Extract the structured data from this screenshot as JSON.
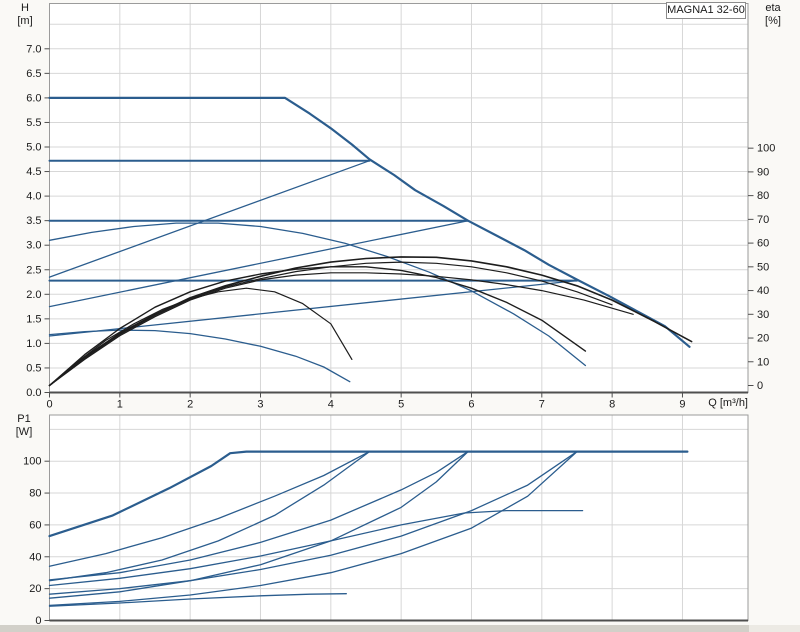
{
  "title_box": {
    "label": "MAGNA1 32-60"
  },
  "axes_labels": {
    "head": "H",
    "head_unit": "[m]",
    "eta": "eta",
    "eta_unit": "[%]",
    "power": "P1",
    "power_unit": "[W]",
    "flow": "Q [m³/h]"
  },
  "colors": {
    "blue": "#2b5d8e",
    "black": "#1d1d1d",
    "grid": "#d7d7d7",
    "frame": "#9b9b9b",
    "axis": "#4f4f4f",
    "text": "#1a1a1a",
    "plot_bg": "#ffffff"
  },
  "chart_data": [
    {
      "type": "line",
      "name": "performance-chart",
      "title": "MAGNA1 32-60",
      "x_axis": {
        "label": "Q [m³/h]",
        "min": 0,
        "max": 9.93,
        "tick_labels": [
          "0",
          "1",
          "2",
          "3",
          "4",
          "5",
          "6",
          "7",
          "8",
          "9"
        ],
        "grid": true
      },
      "y_left": {
        "label": "H [m]",
        "min": 0,
        "max": 7.9,
        "tick_step": 0.5,
        "grid_max": 7.5,
        "tick_labels": [
          "0.0",
          "0.5",
          "1.0",
          "1.5",
          "2.0",
          "2.5",
          "3.0",
          "3.5",
          "4.0",
          "4.5",
          "5.0",
          "5.5",
          "6.0",
          "6.5",
          "7.0"
        ]
      },
      "y_right": {
        "label": "eta [%]",
        "min": 0,
        "max": 100,
        "tick_step": 10,
        "tick_labels": [
          "0",
          "10",
          "20",
          "30",
          "40",
          "50",
          "60",
          "70",
          "80",
          "90",
          "100"
        ]
      },
      "series": [
        {
          "name": "max-speed-curve",
          "axis": "H",
          "color": "blue",
          "width": 2.2,
          "points": [
            [
              0,
              6.0
            ],
            [
              2.9,
              6.0
            ],
            [
              3.35,
              6.0
            ],
            [
              3.7,
              5.68
            ],
            [
              4.0,
              5.38
            ],
            [
              4.3,
              5.05
            ],
            [
              4.55,
              4.75
            ],
            [
              4.9,
              4.43
            ],
            [
              5.2,
              4.12
            ],
            [
              5.6,
              3.8
            ],
            [
              5.95,
              3.5
            ],
            [
              6.35,
              3.2
            ],
            [
              6.75,
              2.9
            ],
            [
              7.1,
              2.6
            ],
            [
              7.5,
              2.3
            ],
            [
              7.95,
              1.97
            ],
            [
              8.4,
              1.62
            ],
            [
              8.75,
              1.35
            ],
            [
              9.1,
              0.93
            ]
          ]
        },
        {
          "name": "const-pressure-4.7",
          "axis": "H",
          "color": "blue",
          "width": 2,
          "points": [
            [
              0,
              4.72
            ],
            [
              4.55,
              4.72
            ]
          ]
        },
        {
          "name": "const-pressure-3.5",
          "axis": "H",
          "color": "blue",
          "width": 2,
          "points": [
            [
              0,
              3.5
            ],
            [
              5.95,
              3.5
            ]
          ]
        },
        {
          "name": "const-pressure-2.3",
          "axis": "H",
          "color": "blue",
          "width": 2,
          "points": [
            [
              0,
              2.28
            ],
            [
              7.5,
              2.28
            ]
          ]
        },
        {
          "name": "prop-pressure-4.7",
          "axis": "H",
          "color": "blue",
          "width": 1.3,
          "points": [
            [
              0,
              2.35
            ],
            [
              4.55,
              4.72
            ]
          ]
        },
        {
          "name": "prop-pressure-3.5",
          "axis": "H",
          "color": "blue",
          "width": 1.3,
          "points": [
            [
              0,
              1.75
            ],
            [
              5.95,
              3.5
            ]
          ]
        },
        {
          "name": "prop-pressure-2.3",
          "axis": "H",
          "color": "blue",
          "width": 1.3,
          "points": [
            [
              0,
              1.15
            ],
            [
              7.5,
              2.28
            ]
          ]
        },
        {
          "name": "mid-speed-curve",
          "axis": "H",
          "color": "blue",
          "width": 1.3,
          "points": [
            [
              0,
              3.1
            ],
            [
              0.6,
              3.26
            ],
            [
              1.2,
              3.38
            ],
            [
              1.8,
              3.45
            ],
            [
              2.4,
              3.45
            ],
            [
              3.0,
              3.38
            ],
            [
              3.6,
              3.24
            ],
            [
              4.2,
              3.04
            ],
            [
              4.8,
              2.77
            ],
            [
              5.4,
              2.45
            ],
            [
              6.0,
              2.07
            ],
            [
              6.6,
              1.6
            ],
            [
              7.1,
              1.15
            ],
            [
              7.62,
              0.55
            ]
          ]
        },
        {
          "name": "min-speed-curve",
          "axis": "H",
          "color": "blue",
          "width": 1.3,
          "points": [
            [
              0,
              1.18
            ],
            [
              0.5,
              1.24
            ],
            [
              1.0,
              1.27
            ],
            [
              1.5,
              1.26
            ],
            [
              2.0,
              1.2
            ],
            [
              2.5,
              1.09
            ],
            [
              3.0,
              0.94
            ],
            [
              3.5,
              0.74
            ],
            [
              3.9,
              0.52
            ],
            [
              4.27,
              0.22
            ]
          ]
        },
        {
          "name": "efficiency-max",
          "axis": "eta",
          "color": "black",
          "width": 1.6,
          "points": [
            [
              0,
              0
            ],
            [
              0.5,
              12
            ],
            [
              1,
              22
            ],
            [
              1.5,
              30
            ],
            [
              2,
              37
            ],
            [
              2.5,
              42
            ],
            [
              3,
              46
            ],
            [
              3.5,
              49.5
            ],
            [
              4,
              52
            ],
            [
              4.5,
              53.5
            ],
            [
              5,
              54.2
            ],
            [
              5.5,
              54
            ],
            [
              6,
              52.5
            ],
            [
              6.5,
              50
            ],
            [
              7,
              46.5
            ],
            [
              7.5,
              42
            ],
            [
              8,
              36
            ],
            [
              8.6,
              27
            ],
            [
              9.13,
              18.5
            ]
          ]
        },
        {
          "name": "efficiency-2",
          "axis": "eta",
          "color": "black",
          "width": 1.4,
          "points": [
            [
              0,
              0
            ],
            [
              0.5,
              13
            ],
            [
              1,
              24
            ],
            [
              1.5,
              33
            ],
            [
              2,
              39.5
            ],
            [
              2.5,
              44
            ],
            [
              3,
              47
            ],
            [
              3.5,
              49
            ],
            [
              4,
              50
            ],
            [
              4.5,
              50
            ],
            [
              5,
              48.5
            ],
            [
              5.5,
              45.5
            ],
            [
              6,
              41
            ],
            [
              6.5,
              35
            ],
            [
              7,
              27.5
            ],
            [
              7.62,
              14.5
            ]
          ]
        },
        {
          "name": "efficiency-3",
          "axis": "eta",
          "color": "black",
          "width": 1.2,
          "points": [
            [
              0,
              0
            ],
            [
              0.5,
              11
            ],
            [
              1,
              21
            ],
            [
              1.5,
              29
            ],
            [
              2,
              36
            ],
            [
              2.5,
              41
            ],
            [
              3,
              44.5
            ],
            [
              3.5,
              46.5
            ],
            [
              4,
              47.5
            ],
            [
              4.5,
              47.5
            ],
            [
              5,
              47
            ],
            [
              5.5,
              46
            ],
            [
              6,
              44.5
            ],
            [
              6.5,
              42.5
            ],
            [
              7,
              40
            ],
            [
              7.6,
              36
            ],
            [
              8.3,
              30
            ]
          ]
        },
        {
          "name": "efficiency-4",
          "axis": "eta",
          "color": "black",
          "width": 1.2,
          "points": [
            [
              0,
              0
            ],
            [
              0.5,
              11.5
            ],
            [
              1,
              21.5
            ],
            [
              1.5,
              29.5
            ],
            [
              2,
              36.5
            ],
            [
              2.5,
              41.5
            ],
            [
              3,
              45
            ],
            [
              3.5,
              48
            ],
            [
              4,
              50
            ],
            [
              4.5,
              51.5
            ],
            [
              5,
              52
            ],
            [
              5.5,
              51.5
            ],
            [
              6,
              50
            ],
            [
              6.5,
              47.5
            ],
            [
              7,
              44
            ],
            [
              7.5,
              39.5
            ],
            [
              8,
              34
            ]
          ]
        },
        {
          "name": "efficiency-min",
          "axis": "eta",
          "color": "black",
          "width": 1.2,
          "points": [
            [
              0,
              0
            ],
            [
              0.4,
              10
            ],
            [
              0.8,
              19
            ],
            [
              1.2,
              26
            ],
            [
              1.6,
              32
            ],
            [
              2,
              36.5
            ],
            [
              2.4,
              39.5
            ],
            [
              2.8,
              41
            ],
            [
              3.2,
              39.5
            ],
            [
              3.6,
              34.5
            ],
            [
              4,
              26
            ],
            [
              4.3,
              11
            ]
          ]
        }
      ]
    },
    {
      "type": "line",
      "name": "power-chart",
      "x_axis": {
        "label": "",
        "min": 0,
        "max": 9.93,
        "grid": true
      },
      "y_left": {
        "label": "P1 [W]",
        "min": 0,
        "max": 129,
        "tick_step": 20,
        "grid_max": 120,
        "tick_labels": [
          "0",
          "20",
          "40",
          "60",
          "80",
          "100"
        ]
      },
      "series": [
        {
          "name": "p1-max-speed",
          "axis": "W",
          "color": "blue",
          "width": 2.2,
          "points": [
            [
              0,
              53
            ],
            [
              0.9,
              66
            ],
            [
              1.7,
              83
            ],
            [
              2.3,
              97
            ],
            [
              2.57,
              105
            ],
            [
              2.8,
              106
            ],
            [
              9.07,
              106
            ]
          ]
        },
        {
          "name": "p1-const-4.7",
          "axis": "W",
          "color": "blue",
          "width": 1.3,
          "points": [
            [
              0,
              34
            ],
            [
              0.8,
              42
            ],
            [
              1.6,
              52
            ],
            [
              2.4,
              64
            ],
            [
              3.2,
              78
            ],
            [
              3.9,
              91
            ],
            [
              4.55,
              106
            ]
          ]
        },
        {
          "name": "p1-prop-4.7",
          "axis": "W",
          "color": "blue",
          "width": 1.3,
          "points": [
            [
              0,
              25
            ],
            [
              0.8,
              30
            ],
            [
              1.6,
              38
            ],
            [
              2.4,
              50
            ],
            [
              3.2,
              66
            ],
            [
              3.9,
              85
            ],
            [
              4.55,
              106
            ]
          ]
        },
        {
          "name": "p1-const-3.5",
          "axis": "W",
          "color": "blue",
          "width": 1.3,
          "points": [
            [
              0,
              25.5
            ],
            [
              1,
              30
            ],
            [
              2,
              38
            ],
            [
              3,
              49
            ],
            [
              4,
              63
            ],
            [
              5,
              82
            ],
            [
              5.5,
              93
            ],
            [
              5.95,
              106
            ]
          ]
        },
        {
          "name": "p1-prop-3.5",
          "axis": "W",
          "color": "blue",
          "width": 1.3,
          "points": [
            [
              0,
              14
            ],
            [
              1,
              18
            ],
            [
              2,
              25
            ],
            [
              3,
              35
            ],
            [
              4,
              50
            ],
            [
              5,
              71
            ],
            [
              5.5,
              87
            ],
            [
              5.95,
              106
            ]
          ]
        },
        {
          "name": "p1-const-2.3",
          "axis": "W",
          "color": "blue",
          "width": 1.3,
          "points": [
            [
              0,
              16.5
            ],
            [
              1,
              20
            ],
            [
              2,
              25
            ],
            [
              3,
              32
            ],
            [
              4,
              41
            ],
            [
              5,
              53
            ],
            [
              6,
              69
            ],
            [
              6.8,
              85
            ],
            [
              7.5,
              106
            ]
          ]
        },
        {
          "name": "p1-prop-2.3",
          "axis": "W",
          "color": "blue",
          "width": 1.3,
          "points": [
            [
              0,
              9.5
            ],
            [
              1,
              12
            ],
            [
              2,
              16
            ],
            [
              3,
              22
            ],
            [
              4,
              30
            ],
            [
              5,
              42
            ],
            [
              6,
              58
            ],
            [
              6.8,
              78
            ],
            [
              7.5,
              106
            ]
          ]
        },
        {
          "name": "p1-mid-speed",
          "axis": "W",
          "color": "blue",
          "width": 1.3,
          "points": [
            [
              0,
              22
            ],
            [
              1,
              26.5
            ],
            [
              2,
              32.5
            ],
            [
              3,
              40.5
            ],
            [
              4,
              50
            ],
            [
              5,
              60
            ],
            [
              5.9,
              67.5
            ],
            [
              6.5,
              69
            ],
            [
              7.58,
              69
            ]
          ]
        },
        {
          "name": "p1-min-speed",
          "axis": "W",
          "color": "blue",
          "width": 1.3,
          "points": [
            [
              0,
              9
            ],
            [
              1,
              11
            ],
            [
              2,
              13.5
            ],
            [
              3,
              15.5
            ],
            [
              3.7,
              16.5
            ],
            [
              4.22,
              16.8
            ]
          ]
        }
      ]
    }
  ]
}
